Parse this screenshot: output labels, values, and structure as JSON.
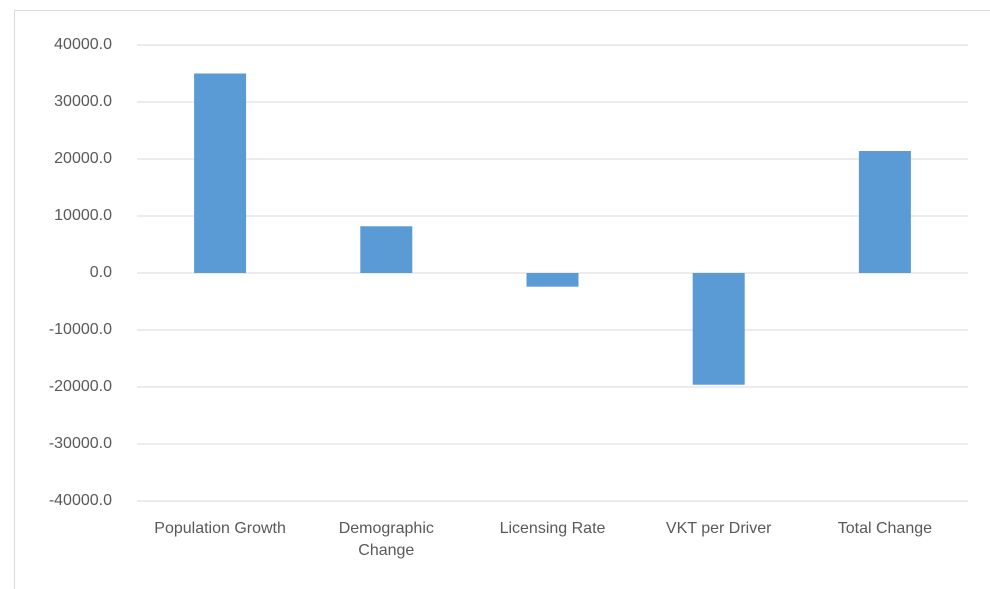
{
  "chart_data": {
    "type": "bar",
    "categories": [
      "Population Growth",
      "Demographic Change",
      "Licensing Rate",
      "VKT per Driver",
      "Total Change"
    ],
    "values": [
      35000,
      8200,
      -2400,
      -19600,
      21400
    ],
    "color": "#5b9bd5",
    "ylim": [
      -40000,
      40000
    ],
    "yticks": [
      {
        "value": -40000,
        "label": "-40000.0"
      },
      {
        "value": -30000,
        "label": "-30000.0"
      },
      {
        "value": -20000,
        "label": "-20000.0"
      },
      {
        "value": -10000,
        "label": "-10000.0"
      },
      {
        "value": 0,
        "label": "0.0"
      },
      {
        "value": 10000,
        "label": "10000.0"
      },
      {
        "value": 20000,
        "label": "20000.0"
      },
      {
        "value": 30000,
        "label": "30000.0"
      },
      {
        "value": 40000,
        "label": "40000.0"
      }
    ],
    "grid": true
  }
}
